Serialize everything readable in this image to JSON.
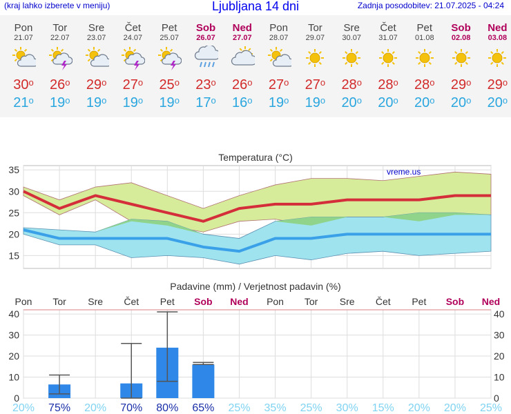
{
  "header": {
    "left_note": "(kraj lahko izberete v meniju)",
    "title": "Ljubljana 14 dni",
    "updated": "Zadnja posodobitev: 21.07.2025 - 04:24"
  },
  "days": [
    {
      "name": "Pon",
      "date": "21.07",
      "weekend": false,
      "icon": "sun-cloud-icon",
      "tmax": "30",
      "tmin": "21",
      "precip_prob": "20%",
      "precip_mm": 0,
      "precip_range": null
    },
    {
      "name": "Tor",
      "date": "22.07",
      "weekend": false,
      "icon": "sun-storm-icon",
      "tmax": "26",
      "tmin": "19",
      "precip_prob": "75%",
      "precip_mm": 6.5,
      "precip_range": [
        2,
        11
      ]
    },
    {
      "name": "Sre",
      "date": "23.07",
      "weekend": false,
      "icon": "sun-cloud-icon",
      "tmax": "29",
      "tmin": "19",
      "precip_prob": "20%",
      "precip_mm": 0,
      "precip_range": null
    },
    {
      "name": "Čet",
      "date": "24.07",
      "weekend": false,
      "icon": "sun-storm-icon",
      "tmax": "27",
      "tmin": "19",
      "precip_prob": "70%",
      "precip_mm": 7,
      "precip_range": [
        0,
        26
      ]
    },
    {
      "name": "Pet",
      "date": "25.07",
      "weekend": false,
      "icon": "sun-storm-icon",
      "tmax": "25",
      "tmin": "19",
      "precip_prob": "80%",
      "precip_mm": 24,
      "precip_range": [
        8,
        41
      ]
    },
    {
      "name": "Sob",
      "date": "26.07",
      "weekend": true,
      "icon": "cloud-rain-icon",
      "tmax": "23",
      "tmin": "17",
      "precip_prob": "65%",
      "precip_mm": 16,
      "precip_range": [
        16,
        17
      ]
    },
    {
      "name": "Ned",
      "date": "27.07",
      "weekend": true,
      "icon": "sun-behind-cloud-icon",
      "tmax": "26",
      "tmin": "16",
      "precip_prob": "25%",
      "precip_mm": 0,
      "precip_range": null
    },
    {
      "name": "Pon",
      "date": "28.07",
      "weekend": false,
      "icon": "sun-cloud-icon",
      "tmax": "27",
      "tmin": "19",
      "precip_prob": "35%",
      "precip_mm": 0,
      "precip_range": null
    },
    {
      "name": "Tor",
      "date": "29.07",
      "weekend": false,
      "icon": "sun-icon",
      "tmax": "27",
      "tmin": "19",
      "precip_prob": "25%",
      "precip_mm": 0,
      "precip_range": null
    },
    {
      "name": "Sre",
      "date": "30.07",
      "weekend": false,
      "icon": "sun-icon",
      "tmax": "28",
      "tmin": "20",
      "precip_prob": "30%",
      "precip_mm": 0,
      "precip_range": null
    },
    {
      "name": "Čet",
      "date": "31.07",
      "weekend": false,
      "icon": "sun-icon",
      "tmax": "28",
      "tmin": "20",
      "precip_prob": "15%",
      "precip_mm": 0,
      "precip_range": null
    },
    {
      "name": "Pet",
      "date": "01.08",
      "weekend": false,
      "icon": "sun-icon",
      "tmax": "28",
      "tmin": "20",
      "precip_prob": "20%",
      "precip_mm": 0,
      "precip_range": null
    },
    {
      "name": "Sob",
      "date": "02.08",
      "weekend": true,
      "icon": "sun-icon",
      "tmax": "29",
      "tmin": "20",
      "precip_prob": "20%",
      "precip_mm": 0,
      "precip_range": null
    },
    {
      "name": "Ned",
      "date": "03.08",
      "weekend": true,
      "icon": "sun-icon",
      "tmax": "29",
      "tmin": "20",
      "precip_prob": "25%",
      "precip_mm": 0,
      "precip_range": null
    }
  ],
  "chart_data": [
    {
      "type": "line",
      "title": "Temperatura (°C)",
      "watermark": "vreme.us",
      "ylim": [
        12,
        36
      ],
      "yticks": [
        15,
        20,
        25,
        30,
        35
      ],
      "grid": true,
      "x": [
        "21.07",
        "22.07",
        "23.07",
        "24.07",
        "25.07",
        "26.07",
        "27.07",
        "28.07",
        "29.07",
        "30.07",
        "31.07",
        "01.08",
        "02.08",
        "03.08"
      ],
      "series": [
        {
          "values": [
            30,
            26,
            29,
            27,
            25,
            23,
            26,
            27,
            27,
            28,
            28,
            28,
            29,
            29
          ]
        },
        {
          "values": [
            21,
            19,
            19,
            19,
            19,
            17,
            16,
            19,
            19,
            20,
            20,
            20,
            20,
            20
          ]
        },
        {
          "values": [
            31,
            28,
            31,
            32,
            29,
            26,
            29,
            31.5,
            33,
            33,
            32.5,
            33.5,
            34.5,
            34
          ]
        },
        {
          "values": [
            29,
            24.5,
            28,
            23,
            22,
            20.5,
            23,
            23.5,
            22,
            24,
            24,
            23,
            24.5,
            24.5
          ]
        },
        {
          "values": [
            21.5,
            21,
            20.5,
            23.5,
            23,
            20,
            19,
            23,
            24,
            24,
            24,
            25,
            25,
            24.5
          ]
        },
        {
          "values": [
            20,
            17.5,
            17.5,
            14.5,
            15,
            14.5,
            13,
            15,
            14,
            15.5,
            16,
            15,
            15.5,
            16
          ]
        }
      ],
      "colors": {
        "max_line": "#d42e3a",
        "min_line": "#3aa0e8",
        "max_band": "#d6ec9a",
        "min_band": "#9fe3ef",
        "overlap": "#8fd48a"
      }
    },
    {
      "type": "bar",
      "title": "Padavine (mm) / Verjetnost padavin (%)",
      "ylim": [
        0,
        42
      ],
      "yticks": [
        0,
        10,
        20,
        30,
        40
      ],
      "grid": true,
      "categories": [
        "Pon",
        "Tor",
        "Sre",
        "Čet",
        "Pet",
        "Sob",
        "Ned",
        "Pon",
        "Tor",
        "Sre",
        "Čet",
        "Pet",
        "Sob",
        "Ned"
      ],
      "values": [
        0,
        6.5,
        0,
        7,
        24,
        16,
        0,
        0,
        0,
        0,
        0,
        0,
        0,
        0
      ],
      "error_ranges": [
        null,
        [
          2,
          11
        ],
        null,
        [
          0,
          26
        ],
        [
          8,
          41
        ],
        [
          16,
          17
        ],
        null,
        null,
        null,
        null,
        null,
        null,
        null,
        null
      ],
      "probabilities": [
        "20%",
        "75%",
        "20%",
        "70%",
        "80%",
        "65%",
        "25%",
        "35%",
        "25%",
        "30%",
        "15%",
        "20%",
        "20%",
        "25%"
      ],
      "colors": {
        "bar": "#2f88e8",
        "prob_high": "#1a2ea8",
        "prob_low": "#7fd3f2"
      }
    }
  ]
}
